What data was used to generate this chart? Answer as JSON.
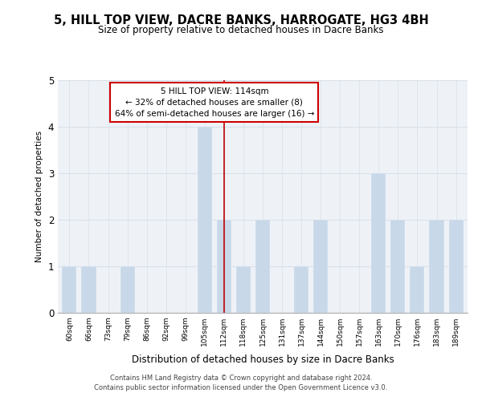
{
  "title": "5, HILL TOP VIEW, DACRE BANKS, HARROGATE, HG3 4BH",
  "subtitle": "Size of property relative to detached houses in Dacre Banks",
  "xlabel": "Distribution of detached houses by size in Dacre Banks",
  "ylabel": "Number of detached properties",
  "bar_labels": [
    "60sqm",
    "66sqm",
    "73sqm",
    "79sqm",
    "86sqm",
    "92sqm",
    "99sqm",
    "105sqm",
    "112sqm",
    "118sqm",
    "125sqm",
    "131sqm",
    "137sqm",
    "144sqm",
    "150sqm",
    "157sqm",
    "163sqm",
    "170sqm",
    "176sqm",
    "183sqm",
    "189sqm"
  ],
  "bar_values": [
    1,
    1,
    0,
    1,
    0,
    0,
    0,
    4,
    2,
    1,
    2,
    0,
    1,
    2,
    0,
    0,
    3,
    2,
    1,
    2,
    2
  ],
  "bar_color": "#c8d8e8",
  "highlight_index": 8,
  "highlight_line_color": "#bb0000",
  "annotation_line1": "5 HILL TOP VIEW: 114sqm",
  "annotation_line2": "← 32% of detached houses are smaller (8)",
  "annotation_line3": "64% of semi-detached houses are larger (16) →",
  "annotation_box_color": "#ffffff",
  "annotation_box_edge_color": "#cc0000",
  "ylim": [
    0,
    5
  ],
  "yticks": [
    0,
    1,
    2,
    3,
    4,
    5
  ],
  "footer_line1": "Contains HM Land Registry data © Crown copyright and database right 2024.",
  "footer_line2": "Contains public sector information licensed under the Open Government Licence v3.0.",
  "bg_color": "#eef2f7",
  "grid_color": "#d8e0ea"
}
